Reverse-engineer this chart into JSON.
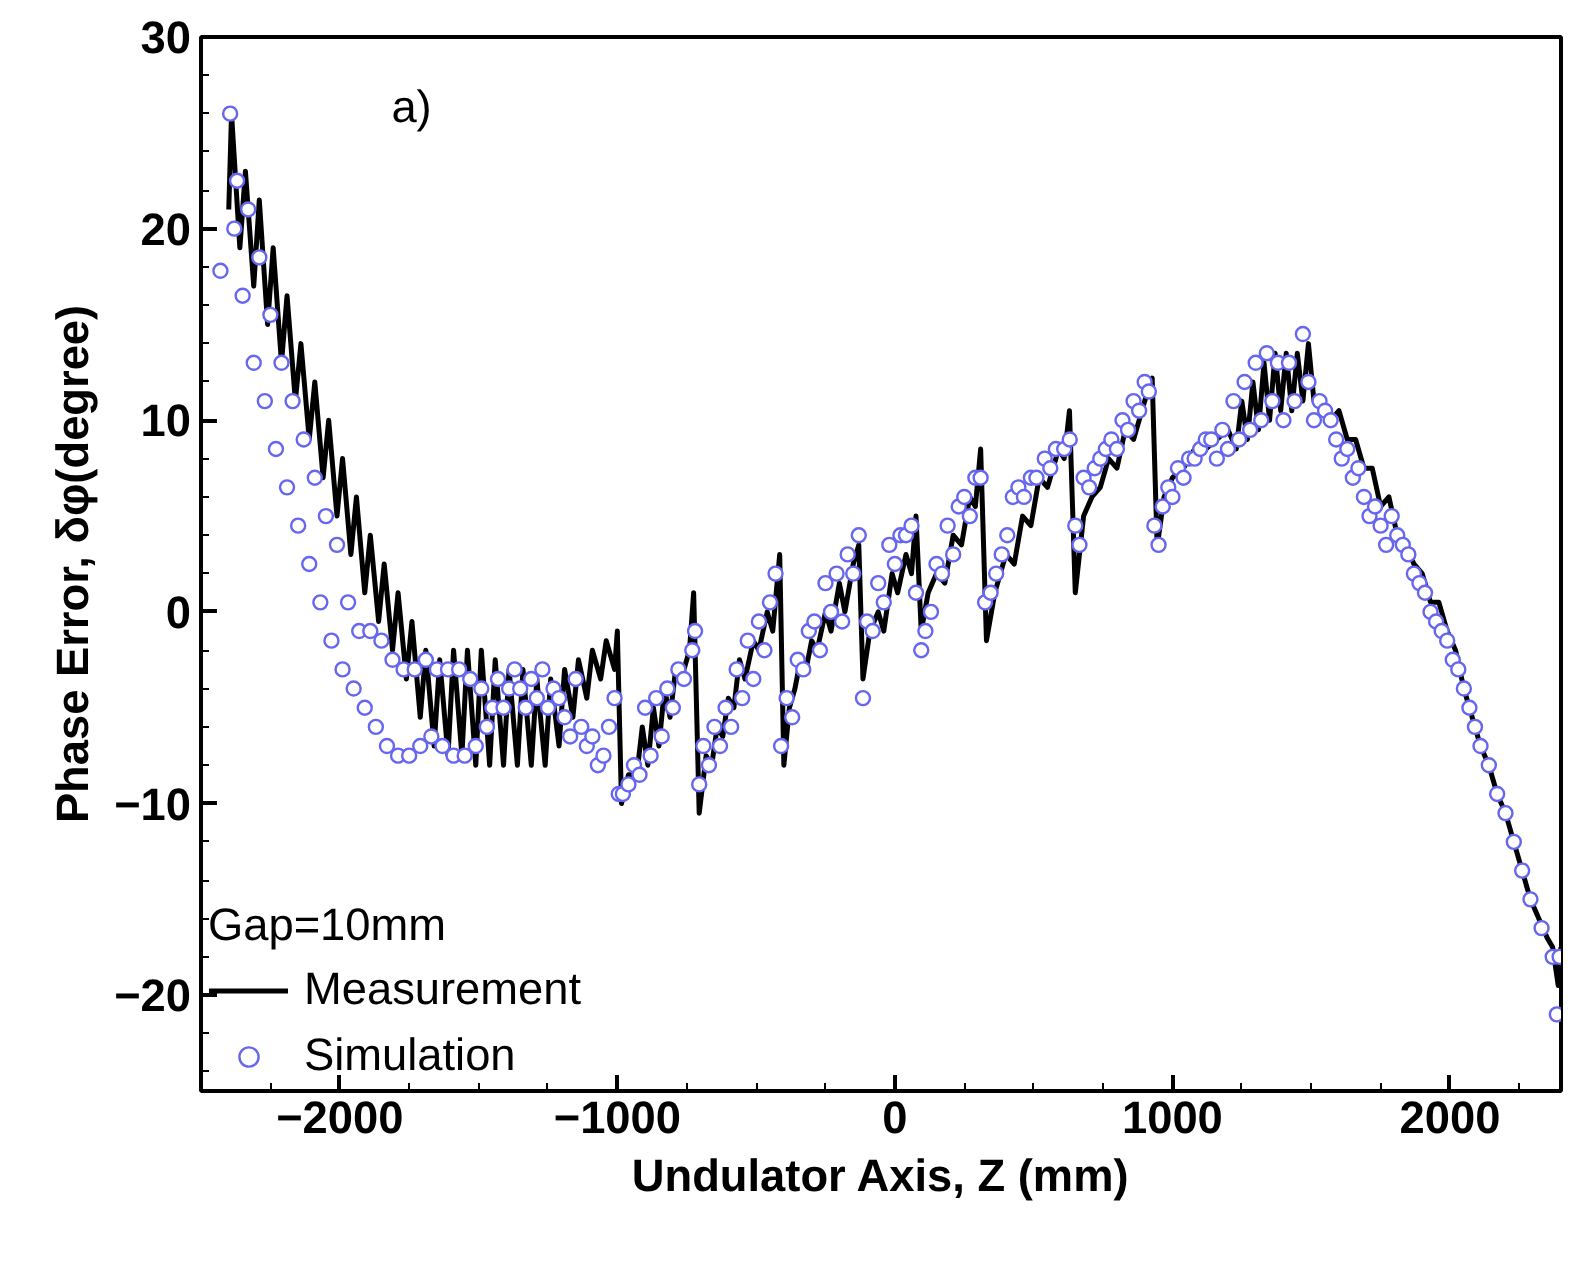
{
  "chart_data": {
    "type": "line",
    "xlabel": "Undulator Axis, Z (mm)",
    "ylabel": "Phase Error, δφ(degree)",
    "xlim": [
      -2500,
      2400
    ],
    "ylim": [
      -25,
      30
    ],
    "xticks": [
      -2000,
      -1000,
      0,
      1000,
      2000
    ],
    "yticks": [
      -20,
      -10,
      0,
      10,
      20,
      30
    ],
    "grid": false,
    "legend": "bottom left",
    "legend_title": "Gap=10mm",
    "annotations": [
      "a)"
    ],
    "series": [
      {
        "name": "Measurement",
        "color": "#000000",
        "line_style": "solid",
        "x": [
          -2400,
          -2390,
          -2360,
          -2340,
          -2310,
          -2290,
          -2260,
          -2240,
          -2210,
          -2190,
          -2160,
          -2140,
          -2110,
          -2090,
          -2060,
          -2040,
          -2010,
          -1990,
          -1960,
          -1940,
          -1910,
          -1890,
          -1860,
          -1840,
          -1810,
          -1790,
          -1760,
          -1740,
          -1710,
          -1690,
          -1660,
          -1640,
          -1610,
          -1590,
          -1560,
          -1540,
          -1510,
          -1490,
          -1460,
          -1440,
          -1410,
          -1390,
          -1360,
          -1340,
          -1310,
          -1290,
          -1260,
          -1240,
          -1210,
          -1190,
          -1160,
          -1140,
          -1110,
          -1090,
          -1060,
          -1040,
          -1010,
          -1000,
          -985,
          -960,
          -930,
          -910,
          -890,
          -870,
          -850,
          -830,
          -810,
          -790,
          -770,
          -740,
          -725,
          -705,
          -680,
          -660,
          -640,
          -620,
          -600,
          -580,
          -560,
          -540,
          -510,
          -490,
          -460,
          -440,
          -415,
          -400,
          -380,
          -360,
          -340,
          -320,
          -300,
          -280,
          -250,
          -230,
          -200,
          -180,
          -150,
          -130,
          -115,
          -90,
          -60,
          -40,
          -10,
          10,
          40,
          60,
          76,
          95,
          120,
          150,
          180,
          210,
          240,
          270,
          290,
          309,
          330,
          360,
          400,
          430,
          460,
          490,
          520,
          550,
          590,
          610,
          629,
          650,
          680,
          710,
          740,
          770,
          800,
          830,
          860,
          900,
          927,
          945,
          970,
          1000,
          1040,
          1080,
          1120,
          1160,
          1200,
          1230,
          1250,
          1270,
          1290,
          1310,
          1330,
          1350,
          1370,
          1390,
          1410,
          1430,
          1450,
          1470,
          1490,
          1510,
          1540,
          1570,
          1600,
          1630,
          1660,
          1690,
          1720,
          1750,
          1780,
          1810,
          1840,
          1870,
          1900,
          1930,
          1960,
          1990,
          2020,
          2050,
          2080,
          2110,
          2140,
          2170,
          2200,
          2230,
          2260,
          2290,
          2320,
          2350,
          2370,
          2390,
          2400
        ],
        "values": [
          21,
          26,
          19,
          23,
          17,
          21.5,
          15,
          19,
          13,
          16.5,
          11,
          14,
          9,
          12,
          7,
          10,
          5,
          8,
          3,
          6,
          1,
          4,
          -0.5,
          2.5,
          -2,
          1,
          -3.5,
          -0.5,
          -5.5,
          -2,
          -7,
          -2.5,
          -7.5,
          -2,
          -7.5,
          -2,
          -8,
          -2,
          -8,
          -2.5,
          -8,
          -3,
          -8,
          -3,
          -8,
          -3.5,
          -8,
          -3.5,
          -7,
          -3,
          -5.5,
          -2.5,
          -4.5,
          -2,
          -3.5,
          -1.5,
          -3,
          -1,
          -10,
          -8.5,
          -8.5,
          -6,
          -8,
          -5,
          -7,
          -4,
          -5.5,
          -3,
          -3.5,
          -2,
          1,
          -10.5,
          -7.5,
          -8,
          -6,
          -6.5,
          -4.5,
          -5,
          -2.5,
          -3.5,
          -1.5,
          -2,
          0,
          -1,
          3,
          -8,
          -5,
          -4,
          -2.5,
          -3,
          -1.5,
          -2,
          0,
          -1,
          1.5,
          0,
          2.5,
          3.5,
          -3.5,
          -1,
          0,
          -1,
          2,
          1,
          3,
          2,
          5,
          -1,
          1,
          2,
          1.5,
          4,
          3.5,
          6,
          5.5,
          8.5,
          -1.5,
          1,
          3,
          2.5,
          5,
          4.5,
          7,
          6.5,
          8.5,
          8,
          10.5,
          1,
          5,
          6,
          6.5,
          8,
          7.5,
          9.5,
          9,
          11,
          12.2,
          3.4,
          6,
          7,
          7.5,
          8.5,
          8.5,
          9,
          9.5,
          8.5,
          11,
          9,
          12,
          9.5,
          13,
          10,
          13.5,
          10.5,
          13.5,
          10.5,
          13.5,
          11,
          14,
          11,
          11,
          10,
          10.5,
          9,
          9,
          7.5,
          7.5,
          5.5,
          6,
          4,
          3.5,
          2.5,
          2,
          0.5,
          0.5,
          -1,
          -2,
          -4,
          -5.5,
          -7,
          -8,
          -9.5,
          -10.5,
          -12,
          -13.5,
          -15,
          -16,
          -17,
          -17.5,
          -19.5,
          -17.5
        ]
      },
      {
        "name": "Simulation",
        "type": "scatter",
        "color": "#6666ee",
        "marker": "circle",
        "x": [
          -2430,
          -2395,
          -2380,
          -2370,
          -2350,
          -2330,
          -2310,
          -2290,
          -2270,
          -2250,
          -2230,
          -2210,
          -2190,
          -2170,
          -2150,
          -2130,
          -2110,
          -2090,
          -2070,
          -2050,
          -2030,
          -2010,
          -1990,
          -1970,
          -1950,
          -1930,
          -1910,
          -1890,
          -1870,
          -1850,
          -1830,
          -1810,
          -1790,
          -1770,
          -1750,
          -1730,
          -1710,
          -1690,
          -1670,
          -1650,
          -1630,
          -1610,
          -1590,
          -1570,
          -1550,
          -1530,
          -1510,
          -1490,
          -1470,
          -1450,
          -1430,
          -1410,
          -1390,
          -1370,
          -1350,
          -1330,
          -1310,
          -1290,
          -1270,
          -1250,
          -1230,
          -1210,
          -1190,
          -1170,
          -1150,
          -1130,
          -1110,
          -1090,
          -1070,
          -1050,
          -1030,
          -1010,
          -995,
          -980,
          -960,
          -940,
          -920,
          -900,
          -880,
          -860,
          -840,
          -820,
          -800,
          -780,
          -760,
          -730,
          -720,
          -705,
          -690,
          -670,
          -650,
          -630,
          -610,
          -590,
          -570,
          -550,
          -530,
          -510,
          -490,
          -470,
          -450,
          -430,
          -410,
          -390,
          -370,
          -350,
          -330,
          -310,
          -290,
          -270,
          -250,
          -230,
          -210,
          -190,
          -170,
          -150,
          -130,
          -115,
          -100,
          -80,
          -60,
          -40,
          -20,
          0,
          20,
          40,
          60,
          76,
          95,
          110,
          130,
          150,
          170,
          190,
          210,
          230,
          250,
          270,
          290,
          309,
          325,
          345,
          365,
          385,
          405,
          425,
          445,
          465,
          490,
          510,
          540,
          560,
          580,
          610,
          630,
          650,
          665,
          680,
          700,
          720,
          740,
          760,
          780,
          800,
          820,
          840,
          860,
          880,
          900,
          915,
          935,
          950,
          965,
          985,
          1000,
          1020,
          1040,
          1060,
          1080,
          1100,
          1120,
          1140,
          1160,
          1180,
          1200,
          1220,
          1240,
          1260,
          1280,
          1300,
          1320,
          1340,
          1360,
          1380,
          1400,
          1420,
          1440,
          1470,
          1490,
          1510,
          1530,
          1550,
          1570,
          1590,
          1610,
          1630,
          1650,
          1670,
          1690,
          1710,
          1730,
          1750,
          1770,
          1790,
          1810,
          1830,
          1850,
          1870,
          1890,
          1910,
          1930,
          1950,
          1970,
          1990,
          2010,
          2030,
          2050,
          2070,
          2090,
          2110,
          2140,
          2170,
          2200,
          2230,
          2260,
          2290,
          2330,
          2370,
          2385,
          2395
        ],
        "values": [
          17.8,
          26,
          20,
          22.5,
          16.5,
          21,
          13,
          18.5,
          11,
          15.5,
          8.5,
          13,
          6.5,
          11,
          4.5,
          9,
          2.5,
          7,
          0.5,
          5,
          -1.5,
          3.5,
          -3,
          0.5,
          -4,
          -1,
          -5,
          -1,
          -6,
          -1.5,
          -7,
          -2.5,
          -7.5,
          -3,
          -7.5,
          -3,
          -7,
          -2.5,
          -6.5,
          -3,
          -7,
          -3,
          -7.5,
          -3,
          -7.5,
          -3.5,
          -7,
          -4,
          -6,
          -5,
          -3.5,
          -5,
          -4,
          -3,
          -4,
          -5,
          -3.5,
          -4.5,
          -3,
          -5,
          -4,
          -4.5,
          -5.5,
          -6.5,
          -3.5,
          -6,
          -7,
          -6.5,
          -8,
          -7.5,
          -6,
          -4.5,
          -9.5,
          -9.5,
          -9,
          -8,
          -8.5,
          -5,
          -7.5,
          -4.5,
          -6.5,
          -4,
          -5,
          -3,
          -3.5,
          -2,
          -1,
          -9,
          -7,
          -8,
          -6,
          -7,
          -5,
          -6,
          -3,
          -4.5,
          -1.5,
          -3.5,
          -0.5,
          -2,
          0.5,
          2,
          -7,
          -4.5,
          -5.5,
          -2.5,
          -3,
          -1,
          -0.5,
          -2,
          1.5,
          0,
          2,
          -0.5,
          3,
          2,
          4,
          -4.5,
          -0.5,
          -1,
          1.5,
          0.5,
          3.5,
          2.5,
          4,
          4,
          4.5,
          1,
          -2,
          -1,
          0,
          2.5,
          2,
          4.5,
          3,
          5.5,
          6,
          5,
          7,
          7,
          0.5,
          1,
          2,
          3,
          4,
          6,
          6.5,
          6,
          7,
          7,
          8,
          7.5,
          8.5,
          8.5,
          9,
          4.5,
          3.5,
          7,
          6.5,
          7.5,
          8,
          8.5,
          9,
          8.5,
          10,
          9.5,
          11,
          10.5,
          12,
          11.5,
          4.5,
          3.5,
          5.5,
          6.5,
          6,
          7.5,
          7,
          8,
          8,
          8.5,
          9,
          9,
          8,
          9.5,
          8.5,
          11,
          9,
          12,
          9.5,
          13,
          10,
          13.5,
          11,
          13,
          10,
          13,
          11,
          14.5,
          12,
          10,
          11,
          10.5,
          10,
          9,
          8,
          8.5,
          7,
          7.5,
          6,
          5,
          5.5,
          4.5,
          3.5,
          5,
          4,
          3.5,
          3,
          2,
          1.5,
          1,
          0,
          -0.5,
          -1,
          -1.5,
          -2.5,
          -3,
          -4,
          -5,
          -6,
          -7,
          -8,
          -9.5,
          -10.5,
          -12,
          -13.5,
          -15,
          -16.5,
          -18,
          -21,
          -18
        ]
      }
    ]
  }
}
